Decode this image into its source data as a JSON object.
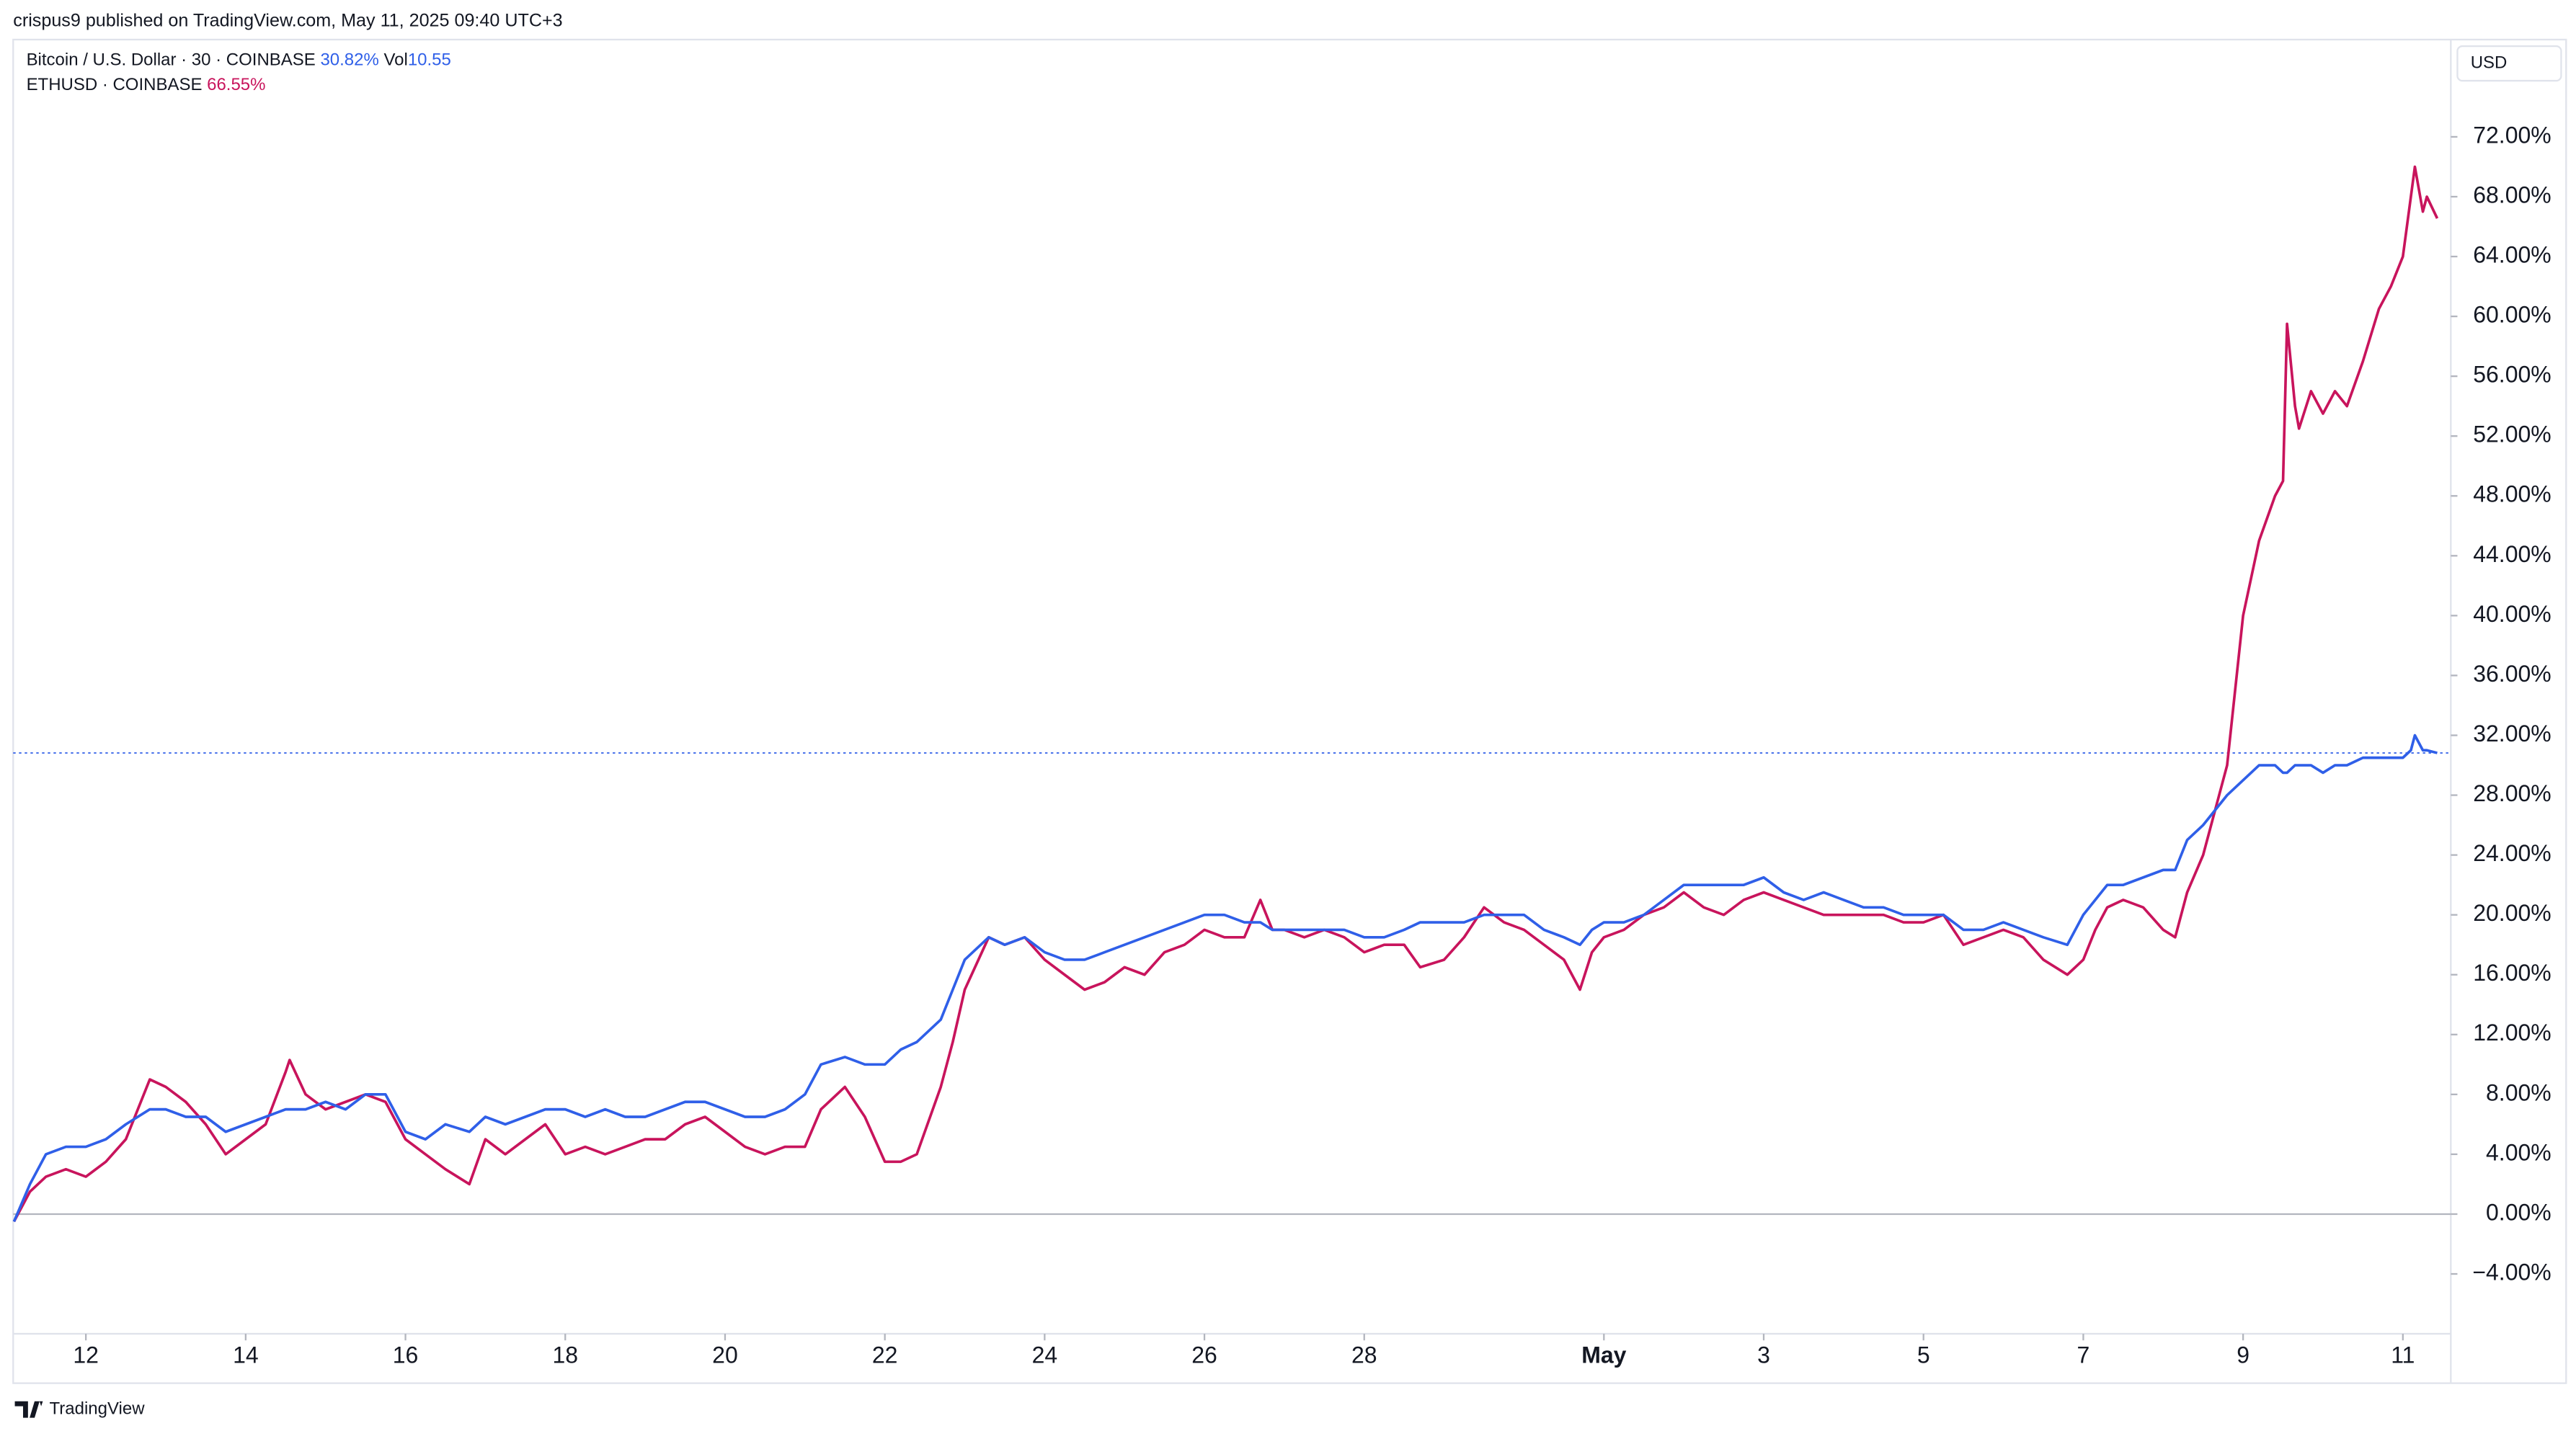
{
  "header": {
    "title": "crispus9 published on TradingView.com, May 11, 2025 09:40 UTC+3",
    "brand": "TradingView"
  },
  "chart_data": {
    "type": "line",
    "currency": "USD",
    "volume_label": "Vol",
    "volume_value": "10.55",
    "x": [
      11.1,
      11.3,
      11.5,
      11.75,
      12,
      12.25,
      12.5,
      12.8,
      13,
      13.25,
      13.5,
      13.75,
      14,
      14.25,
      14.5,
      14.55,
      14.75,
      15,
      15.25,
      15.5,
      15.75,
      16,
      16.25,
      16.5,
      16.8,
      17,
      17.25,
      17.5,
      17.75,
      18,
      18.25,
      18.5,
      18.75,
      19,
      19.25,
      19.5,
      19.75,
      20,
      20.25,
      20.5,
      20.75,
      21,
      21.2,
      21.5,
      21.75,
      22,
      22.2,
      22.4,
      22.7,
      22.85,
      23,
      23.3,
      23.5,
      23.75,
      24,
      24.25,
      24.5,
      24.75,
      25,
      25.25,
      25.5,
      25.75,
      26,
      26.25,
      26.5,
      26.7,
      26.85,
      27,
      27.25,
      27.5,
      27.75,
      28,
      28.25,
      28.5,
      28.7,
      29,
      29.25,
      29.5,
      29.75,
      30,
      30.25,
      30.5,
      30.7,
      30.85,
      31,
      31.25,
      31.5,
      31.75,
      32,
      32.25,
      32.5,
      32.75,
      33,
      33.25,
      33.5,
      33.75,
      34,
      34.25,
      34.5,
      34.75,
      35,
      35.25,
      35.5,
      35.75,
      36,
      36.25,
      36.5,
      36.8,
      37,
      37.15,
      37.3,
      37.5,
      37.75,
      38,
      38.15,
      38.3,
      38.5,
      38.65,
      38.8,
      38.9,
      39,
      39.2,
      39.4,
      39.5,
      39.55,
      39.65,
      39.7,
      39.85,
      40,
      40.15,
      40.3,
      40.5,
      40.7,
      40.85,
      41,
      41.1,
      41.15,
      41.25,
      41.3,
      41.43
    ],
    "series": [
      {
        "name": "Bitcoin / U.S. Dollar · 30 · COINBASE",
        "last_label": "30.82%",
        "color": "#2f5fe8",
        "values": [
          -0.5,
          2,
          4,
          4.5,
          4.5,
          5,
          6,
          7,
          7,
          6.5,
          6.5,
          5.5,
          6,
          6.5,
          7,
          7,
          7,
          7.5,
          7,
          8,
          8,
          5.5,
          5,
          6,
          5.5,
          6.5,
          6,
          6.5,
          7,
          7,
          6.5,
          7,
          6.5,
          6.5,
          7,
          7.5,
          7.5,
          7,
          6.5,
          6.5,
          7,
          8,
          10,
          10.5,
          10,
          10,
          11,
          11.5,
          13,
          15,
          17,
          18.5,
          18,
          18.5,
          17.5,
          17,
          17,
          17.5,
          18,
          18.5,
          19,
          19.5,
          20,
          20,
          19.5,
          19.5,
          19,
          19,
          19,
          19,
          19,
          18.5,
          18.5,
          19,
          19.5,
          19.5,
          19.5,
          20,
          20,
          20,
          19,
          18.5,
          18,
          19,
          19.5,
          19.5,
          20,
          21,
          22,
          22,
          22,
          22,
          22.5,
          21.5,
          21,
          21.5,
          21,
          20.5,
          20.5,
          20,
          20,
          20,
          19,
          19,
          19.5,
          19,
          18.5,
          18,
          20,
          21,
          22,
          22,
          22.5,
          23,
          23,
          25,
          26,
          27,
          28,
          28.5,
          29,
          30,
          30,
          29.5,
          29.5,
          30,
          30,
          30,
          29.5,
          30,
          30,
          30.5,
          30.5,
          30.5,
          30.5,
          31,
          32,
          31,
          31,
          30.82
        ]
      },
      {
        "name": "ETHUSD · COINBASE",
        "last_label": "66.55%",
        "color": "#c8145c",
        "values": [
          -0.5,
          1.5,
          2.5,
          3,
          2.5,
          3.5,
          5,
          9,
          8.5,
          7.5,
          6,
          4,
          5,
          6,
          9.5,
          10.3,
          8,
          7,
          7.5,
          8,
          7.5,
          5,
          4,
          3,
          2,
          5,
          4,
          5,
          6,
          4,
          4.5,
          4,
          4.5,
          5,
          5,
          6,
          6.5,
          5.5,
          4.5,
          4,
          4.5,
          4.5,
          7,
          8.5,
          6.5,
          3.5,
          3.5,
          4,
          8.5,
          11.5,
          15,
          18.5,
          18,
          18.5,
          17,
          16,
          15,
          15.5,
          16.5,
          16,
          17.5,
          18,
          19,
          18.5,
          18.5,
          21,
          19,
          19,
          18.5,
          19,
          18.5,
          17.5,
          18,
          18,
          16.5,
          17,
          18.5,
          20.5,
          19.5,
          19,
          18,
          17,
          15,
          17.5,
          18.5,
          19,
          20,
          20.5,
          21.5,
          20.5,
          20,
          21,
          21.5,
          21,
          20.5,
          20,
          20,
          20,
          20,
          19.5,
          19.5,
          20,
          18,
          18.5,
          19,
          18.5,
          17,
          16,
          17,
          19,
          20.5,
          21,
          20.5,
          19,
          18.5,
          21.5,
          24,
          27,
          30,
          35,
          40,
          45,
          48,
          49,
          59.5,
          54,
          52.5,
          55,
          53.5,
          55,
          54,
          57,
          60.5,
          62,
          64,
          68,
          70,
          67,
          68,
          66.55
        ]
      }
    ],
    "xlim": [
      11.09,
      41.6
    ],
    "xticks": [
      12,
      14,
      16,
      18,
      20,
      22,
      24,
      26,
      28,
      {
        "value": 31,
        "label": "May"
      },
      {
        "value": 33,
        "label": "3"
      },
      {
        "value": 35,
        "label": "5"
      },
      {
        "value": 37,
        "label": "7"
      },
      {
        "value": 39,
        "label": "9"
      },
      {
        "value": 41,
        "label": "11"
      }
    ],
    "ylim": [
      -8,
      78.5
    ],
    "yticks": [
      {
        "value": -4,
        "label": "−4.00%"
      },
      {
        "value": 0,
        "label": "0.00%"
      },
      {
        "value": 4,
        "label": "4.00%"
      },
      {
        "value": 8,
        "label": "8.00%"
      },
      {
        "value": 12,
        "label": "12.00%"
      },
      {
        "value": 16,
        "label": "16.00%"
      },
      {
        "value": 20,
        "label": "20.00%"
      },
      {
        "value": 24,
        "label": "24.00%"
      },
      {
        "value": 28,
        "label": "28.00%"
      },
      {
        "value": 32,
        "label": "32.00%"
      },
      {
        "value": 36,
        "label": "36.00%"
      },
      {
        "value": 40,
        "label": "40.00%"
      },
      {
        "value": 44,
        "label": "44.00%"
      },
      {
        "value": 48,
        "label": "48.00%"
      },
      {
        "value": 52,
        "label": "52.00%"
      },
      {
        "value": 56,
        "label": "56.00%"
      },
      {
        "value": 60,
        "label": "60.00%"
      },
      {
        "value": 64,
        "label": "64.00%"
      },
      {
        "value": 68,
        "label": "68.00%"
      },
      {
        "value": 72,
        "label": "72.00%"
      }
    ],
    "zero_line": true,
    "last_price_line": true,
    "grid": false
  }
}
